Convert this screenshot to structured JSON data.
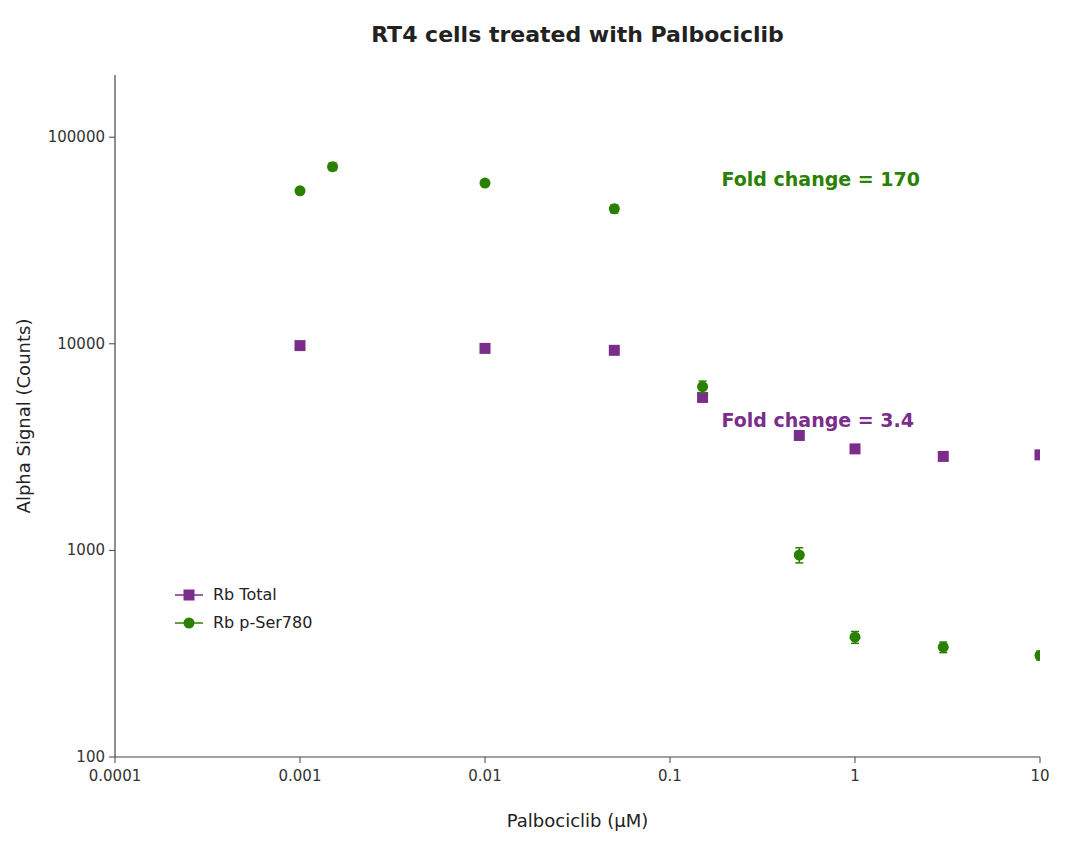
{
  "chart_data": {
    "type": "scatter",
    "title": "RT4 cells treated with Palbociclib",
    "x_label": "Palbociclib (μM)",
    "y_label": "Alpha Signal (Counts)",
    "log": true,
    "grid": false,
    "legend": "lower left",
    "xlim": [
      0.0001,
      10.0
    ],
    "ylim": [
      100,
      200000
    ],
    "xticks": [
      0.0001,
      0.001,
      0.01,
      0.1,
      1,
      10
    ],
    "yticks": [
      100,
      1000,
      10000,
      100000
    ],
    "series": [
      {
        "name": "Rb Total",
        "color": "#7b2d8b",
        "marker": "square",
        "x": [
          0.001,
          0.01,
          0.05,
          0.15,
          0.5,
          1.0,
          3.0,
          10.0
        ],
        "values": [
          9800,
          9500,
          9300,
          5500,
          3600,
          3100,
          2850,
          2900
        ],
        "errors": [
          300,
          300,
          300,
          250,
          150,
          120,
          120,
          120
        ]
      },
      {
        "name": "Rb p-Ser780",
        "color": "#2a8000",
        "marker": "circle",
        "x": [
          0.001,
          0.0015,
          0.01,
          0.05,
          0.15,
          0.5,
          1.0,
          3.0,
          10.0
        ],
        "values": [
          55000,
          72000,
          60000,
          45000,
          6200,
          950,
          380,
          340,
          310
        ],
        "errors": [
          2000,
          3000,
          2000,
          2000,
          400,
          80,
          25,
          20,
          15
        ]
      }
    ],
    "annotations": [
      {
        "text": "Fold change = 170",
        "x": 0.19,
        "y": 62000,
        "color": "#2a8000"
      },
      {
        "text": "Fold change = 3.4",
        "x": 0.19,
        "y": 4200,
        "color": "#7b2d8b"
      }
    ]
  }
}
